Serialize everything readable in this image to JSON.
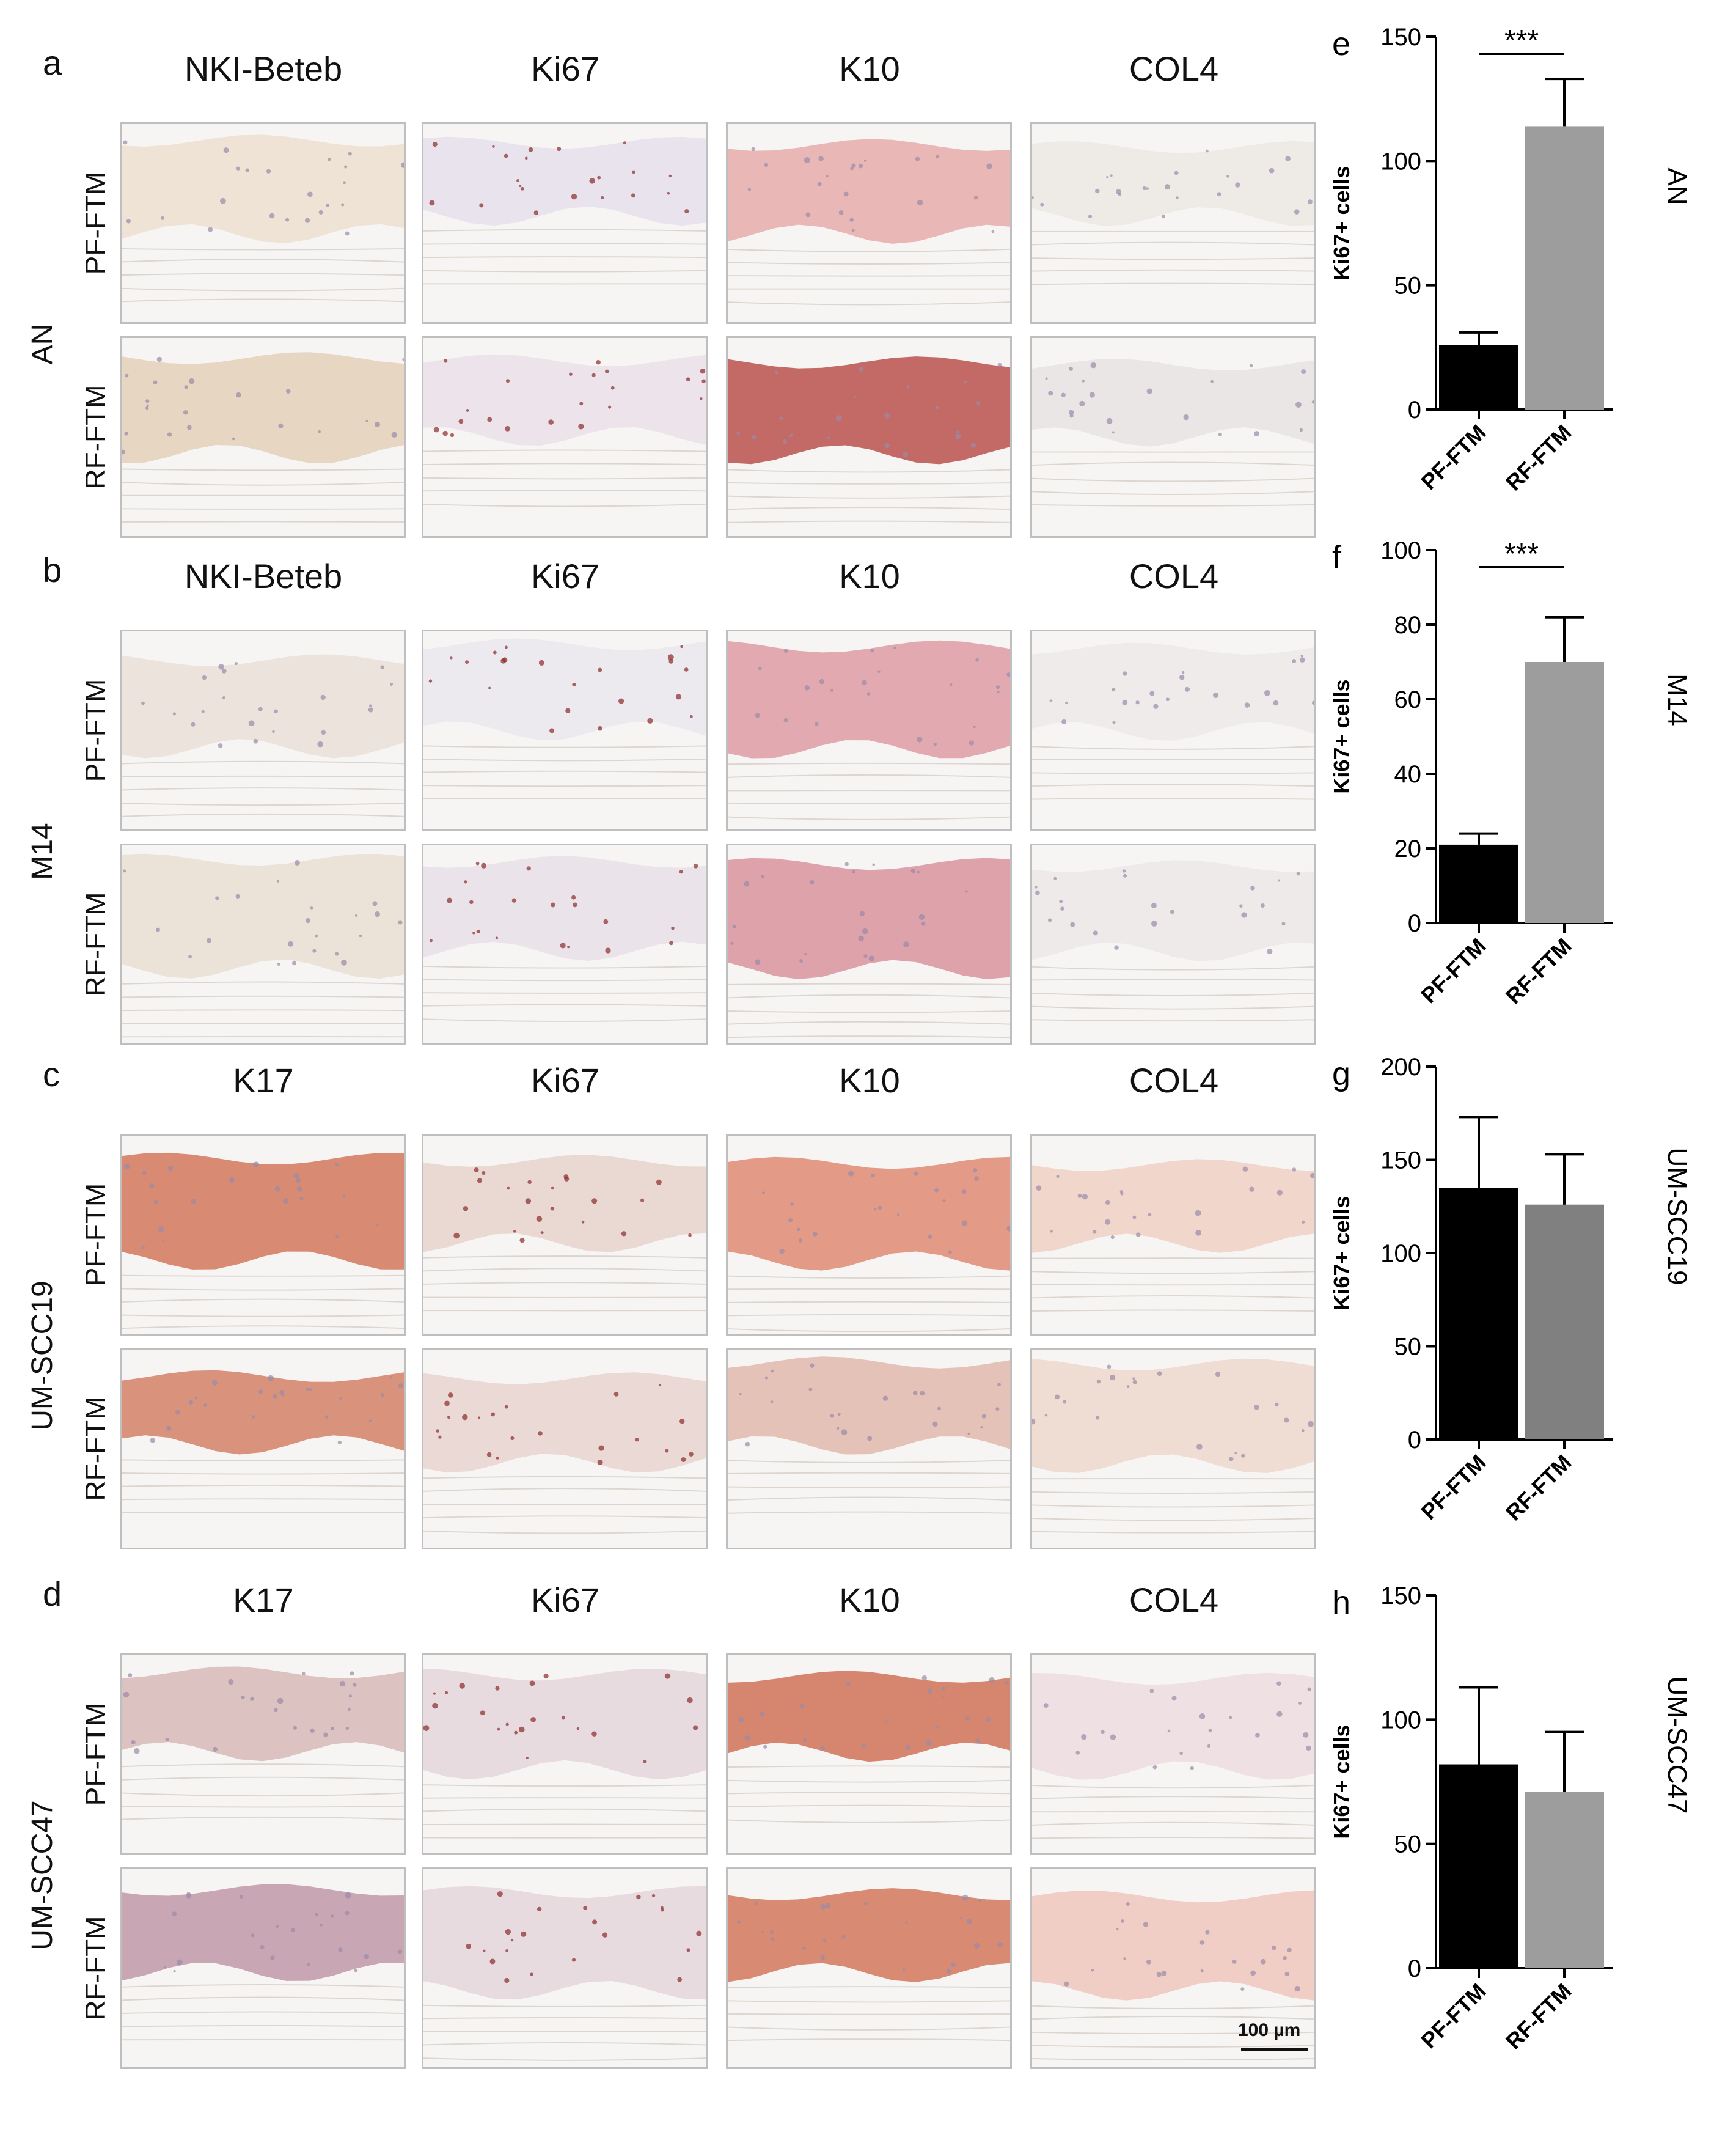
{
  "panels": [
    {
      "letter": "a",
      "group": "AN",
      "columns": [
        "NKI-Beteb",
        "Ki67",
        "K10",
        "COL4"
      ],
      "rows": [
        "PF-FTM",
        "RF-FTM"
      ],
      "tiles": [
        [
          "#efe3d6",
          "#e8e3ec",
          "#e9b8b6",
          "#eeeae6"
        ],
        [
          "#e6d6c2",
          "#ece4ea",
          "#c46a66",
          "#ebe6e6"
        ]
      ]
    },
    {
      "letter": "b",
      "group": "M14",
      "columns": [
        "NKI-Beteb",
        "Ki67",
        "K10",
        "COL4"
      ],
      "rows": [
        "PF-FTM",
        "RF-FTM"
      ],
      "tiles": [
        [
          "#ece4dc",
          "#eceaee",
          "#e2aab0",
          "#efebea"
        ],
        [
          "#ebe2d8",
          "#ebe3ea",
          "#dea2aa",
          "#eeeaea"
        ]
      ]
    },
    {
      "letter": "c",
      "group": "UM-SCC19",
      "columns": [
        "K17",
        "Ki67",
        "K10",
        "COL4"
      ],
      "rows": [
        "PF-FTM",
        "RF-FTM"
      ],
      "tiles": [
        [
          "#d98a72",
          "#ead9d2",
          "#e39a86",
          "#f1d6cc"
        ],
        [
          "#d9937c",
          "#ead9d4",
          "#e4c2b8",
          "#efdcd2"
        ]
      ]
    },
    {
      "letter": "d",
      "group": "UM-SCC47",
      "columns": [
        "K17",
        "Ki67",
        "K10",
        "COL4"
      ],
      "rows": [
        "PF-FTM",
        "RF-FTM"
      ],
      "tiles": [
        [
          "#dcc2c0",
          "#e7dbe0",
          "#d6866e",
          "#efe0e4"
        ],
        [
          "#c9a6b4",
          "#e7dbe0",
          "#d88a72",
          "#f0cec6"
        ]
      ]
    }
  ],
  "scale_bar": "100 µm",
  "chart_data": [
    {
      "letter": "e",
      "type": "bar",
      "group": "AN",
      "categories": [
        "PF-FTM",
        "RF-FTM"
      ],
      "values": [
        26,
        114
      ],
      "errors": [
        5,
        19
      ],
      "colors": [
        "#000000",
        "#9d9d9d"
      ],
      "ylabel": "Ki67+ cells",
      "ylim": [
        0,
        150
      ],
      "yticks": [
        0,
        50,
        100,
        150
      ],
      "significance": "***"
    },
    {
      "letter": "f",
      "type": "bar",
      "group": "M14",
      "categories": [
        "PF-FTM",
        "RF-FTM"
      ],
      "values": [
        21,
        70
      ],
      "errors": [
        3,
        12
      ],
      "colors": [
        "#000000",
        "#9d9d9d"
      ],
      "ylabel": "Ki67+ cells",
      "ylim": [
        0,
        100
      ],
      "yticks": [
        0,
        20,
        40,
        60,
        80,
        100
      ],
      "significance": "***"
    },
    {
      "letter": "g",
      "type": "bar",
      "group": "UM-SCC19",
      "categories": [
        "PF-FTM",
        "RF-FTM"
      ],
      "values": [
        135,
        126
      ],
      "errors": [
        38,
        27
      ],
      "colors": [
        "#000000",
        "#808080"
      ],
      "ylabel": "Ki67+ cells",
      "ylim": [
        0,
        200
      ],
      "yticks": [
        0,
        50,
        100,
        150,
        200
      ],
      "significance": ""
    },
    {
      "letter": "h",
      "type": "bar",
      "group": "UM-SCC47",
      "categories": [
        "PF-FTM",
        "RF-FTM"
      ],
      "values": [
        82,
        71
      ],
      "errors": [
        31,
        24
      ],
      "colors": [
        "#000000",
        "#9d9d9d"
      ],
      "ylabel": "Ki67+ cells",
      "ylim": [
        0,
        150
      ],
      "yticks": [
        0,
        50,
        100,
        150
      ],
      "significance": ""
    }
  ]
}
